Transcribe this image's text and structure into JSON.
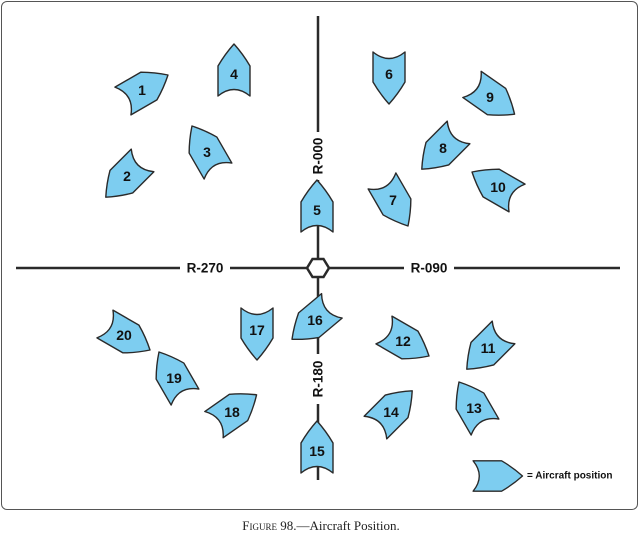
{
  "caption": {
    "figure": "Figure 98.",
    "title": "—Aircraft Position."
  },
  "radials": [
    {
      "id": "r000",
      "label": "R-000",
      "bearing_deg": 0
    },
    {
      "id": "r090",
      "label": "R-090",
      "bearing_deg": 90
    },
    {
      "id": "r180",
      "label": "R-180",
      "bearing_deg": 180
    },
    {
      "id": "r270",
      "label": "R-270",
      "bearing_deg": 270
    }
  ],
  "station_symbol": "vor-station-icon",
  "aircraft": [
    {
      "number": "1",
      "heading_deg": 60
    },
    {
      "number": "2",
      "heading_deg": 225
    },
    {
      "number": "3",
      "heading_deg": 330
    },
    {
      "number": "4",
      "heading_deg": 0
    },
    {
      "number": "5",
      "heading_deg": 0
    },
    {
      "number": "6",
      "heading_deg": 180
    },
    {
      "number": "7",
      "heading_deg": 150
    },
    {
      "number": "8",
      "heading_deg": 225
    },
    {
      "number": "9",
      "heading_deg": 125
    },
    {
      "number": "10",
      "heading_deg": 300
    },
    {
      "number": "11",
      "heading_deg": 225
    },
    {
      "number": "12",
      "heading_deg": 120
    },
    {
      "number": "13",
      "heading_deg": 330
    },
    {
      "number": "14",
      "heading_deg": 45
    },
    {
      "number": "15",
      "heading_deg": 0
    },
    {
      "number": "16",
      "heading_deg": 230
    },
    {
      "number": "17",
      "heading_deg": 180
    },
    {
      "number": "18",
      "heading_deg": 55
    },
    {
      "number": "19",
      "heading_deg": 330
    },
    {
      "number": "20",
      "heading_deg": 120
    }
  ],
  "legend": {
    "label": "= Aircraft position",
    "heading_deg": 90
  },
  "colors": {
    "aircraft_fill": "#7dcdf0",
    "aircraft_stroke": "#2a2a2a",
    "line": "#2a2a2a"
  }
}
